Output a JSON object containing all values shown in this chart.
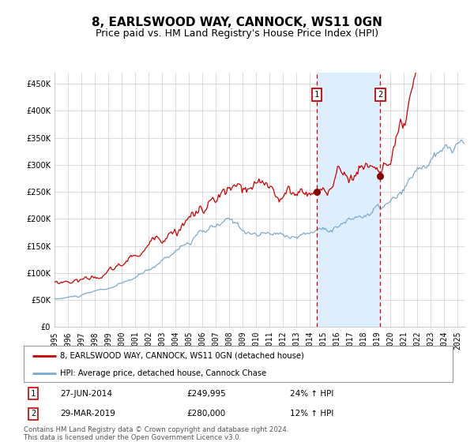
{
  "title": "8, EARLSWOOD WAY, CANNOCK, WS11 0GN",
  "subtitle": "Price paid vs. HM Land Registry's House Price Index (HPI)",
  "ytick_values": [
    0,
    50000,
    100000,
    150000,
    200000,
    250000,
    300000,
    350000,
    400000,
    450000
  ],
  "xlim_start": 1995.0,
  "xlim_end": 2025.5,
  "ylim": [
    0,
    470000
  ],
  "transaction1": {
    "date_label": "27-JUN-2014",
    "date_x": 2014.49,
    "price": 249995,
    "pct": "24% ↑ HPI"
  },
  "transaction2": {
    "date_label": "29-MAR-2019",
    "date_x": 2019.24,
    "price": 280000,
    "pct": "12% ↑ HPI"
  },
  "red_line_color": "#cc0000",
  "blue_line_color": "#7aabcf",
  "shade_color": "#ddeeff",
  "dashed_line_color": "#cc0000",
  "grid_color": "#cccccc",
  "legend_line1": "8, EARLSWOOD WAY, CANNOCK, WS11 0GN (detached house)",
  "legend_line2": "HPI: Average price, detached house, Cannock Chase",
  "footer": "Contains HM Land Registry data © Crown copyright and database right 2024.\nThis data is licensed under the Open Government Licence v3.0.",
  "xtick_years": [
    1995,
    1996,
    1997,
    1998,
    1999,
    2000,
    2001,
    2002,
    2003,
    2004,
    2005,
    2006,
    2007,
    2008,
    2009,
    2010,
    2011,
    2012,
    2013,
    2014,
    2015,
    2016,
    2017,
    2018,
    2019,
    2020,
    2021,
    2022,
    2023,
    2024,
    2025
  ],
  "title_fontsize": 11,
  "subtitle_fontsize": 9,
  "tick_fontsize": 7,
  "background_color": "#ffffff"
}
